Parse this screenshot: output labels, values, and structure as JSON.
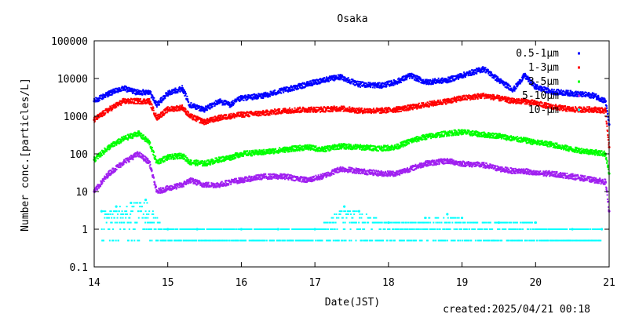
{
  "chart_data": {
    "type": "scatter",
    "title": "Osaka",
    "xlabel": "Date(JST)",
    "ylabel": "Number conc.[particles/L]",
    "footer": "created:2025/04/21 00:18",
    "x_range": [
      14,
      21
    ],
    "y_range": [
      0.1,
      100000
    ],
    "y_scale": "log",
    "x_ticks": [
      14,
      15,
      16,
      17,
      18,
      19,
      20,
      21
    ],
    "x_tick_labels": [
      "14",
      "15",
      "16",
      "17",
      "18",
      "19",
      "20",
      "21"
    ],
    "y_ticks": [
      0.1,
      1,
      10,
      100,
      1000,
      10000,
      100000
    ],
    "y_tick_labels": [
      "0.1",
      "1",
      "10",
      "100",
      "1000",
      "10000",
      "100000"
    ],
    "legend_position": "top-right",
    "grid": false,
    "series": [
      {
        "name": "0.5-1μm",
        "color": "#0000ff",
        "x": [
          14.0,
          14.2,
          14.4,
          14.6,
          14.75,
          14.85,
          15.0,
          15.2,
          15.3,
          15.5,
          15.7,
          15.85,
          16.0,
          16.3,
          16.6,
          16.9,
          17.1,
          17.35,
          17.6,
          17.9,
          18.1,
          18.3,
          18.5,
          18.8,
          19.0,
          19.3,
          19.5,
          19.7,
          19.85,
          20.0,
          20.2,
          20.5,
          20.8,
          20.95,
          21.0
        ],
        "y": [
          2500,
          4000,
          5500,
          4200,
          4500,
          2000,
          4000,
          5500,
          2000,
          1500,
          2500,
          2000,
          3000,
          3500,
          5000,
          7000,
          9000,
          11000,
          7000,
          6500,
          8000,
          12000,
          8000,
          9000,
          12000,
          18000,
          9000,
          5000,
          12000,
          6000,
          4500,
          4000,
          3500,
          2500,
          600
        ]
      },
      {
        "name": "1-3μm",
        "color": "#ff0000",
        "x": [
          14.0,
          14.2,
          14.4,
          14.6,
          14.75,
          14.85,
          15.0,
          15.2,
          15.3,
          15.5,
          15.7,
          15.85,
          16.0,
          16.3,
          16.6,
          16.9,
          17.1,
          17.35,
          17.6,
          17.9,
          18.1,
          18.3,
          18.5,
          18.8,
          19.0,
          19.3,
          19.5,
          19.7,
          19.85,
          20.0,
          20.2,
          20.5,
          20.8,
          20.95,
          21.0
        ],
        "y": [
          800,
          1500,
          2500,
          2500,
          2500,
          900,
          1500,
          1700,
          1000,
          700,
          900,
          1000,
          1100,
          1200,
          1400,
          1500,
          1500,
          1600,
          1400,
          1400,
          1500,
          1700,
          2000,
          2500,
          3000,
          3500,
          3000,
          2500,
          2500,
          2200,
          1800,
          1500,
          1500,
          1400,
          150
        ]
      },
      {
        "name": "3-5μm",
        "color": "#00ff00",
        "x": [
          14.0,
          14.2,
          14.4,
          14.6,
          14.75,
          14.85,
          15.0,
          15.2,
          15.3,
          15.5,
          15.7,
          15.85,
          16.0,
          16.3,
          16.6,
          16.9,
          17.1,
          17.35,
          17.6,
          17.9,
          18.1,
          18.3,
          18.5,
          18.8,
          19.0,
          19.3,
          19.5,
          19.7,
          19.85,
          20.0,
          20.2,
          20.5,
          20.8,
          20.95,
          21.0
        ],
        "y": [
          70,
          150,
          250,
          350,
          200,
          60,
          80,
          90,
          60,
          55,
          70,
          80,
          100,
          110,
          130,
          150,
          130,
          160,
          150,
          140,
          150,
          220,
          280,
          350,
          380,
          320,
          300,
          250,
          230,
          200,
          180,
          130,
          110,
          100,
          30
        ]
      },
      {
        "name": "5-10μm",
        "color": "#a020f0",
        "x": [
          14.0,
          14.2,
          14.4,
          14.6,
          14.75,
          14.85,
          15.0,
          15.2,
          15.3,
          15.5,
          15.7,
          15.85,
          16.0,
          16.3,
          16.6,
          16.9,
          17.1,
          17.35,
          17.6,
          17.9,
          18.1,
          18.3,
          18.5,
          18.8,
          19.0,
          19.3,
          19.5,
          19.7,
          19.85,
          20.0,
          20.2,
          20.5,
          20.8,
          20.95,
          21.0
        ],
        "y": [
          10,
          30,
          60,
          100,
          60,
          10,
          12,
          15,
          20,
          15,
          15,
          18,
          20,
          25,
          25,
          20,
          25,
          40,
          35,
          30,
          30,
          40,
          55,
          65,
          55,
          50,
          40,
          35,
          35,
          30,
          30,
          25,
          20,
          18,
          3
        ]
      },
      {
        "name": "10-μm",
        "color": "#00ffff",
        "x": [
          14.1,
          14.3,
          14.5,
          14.7,
          15.0,
          15.4,
          16.0,
          16.5,
          17.0,
          17.4,
          17.6,
          18.0,
          18.5,
          18.8,
          19.0,
          19.5,
          20.0,
          20.5,
          20.9
        ],
        "y": [
          3,
          4,
          5,
          6,
          1,
          1,
          1,
          1,
          1,
          4,
          3,
          1.5,
          2,
          2.5,
          2,
          1.5,
          1.5,
          1,
          1
        ]
      }
    ]
  }
}
